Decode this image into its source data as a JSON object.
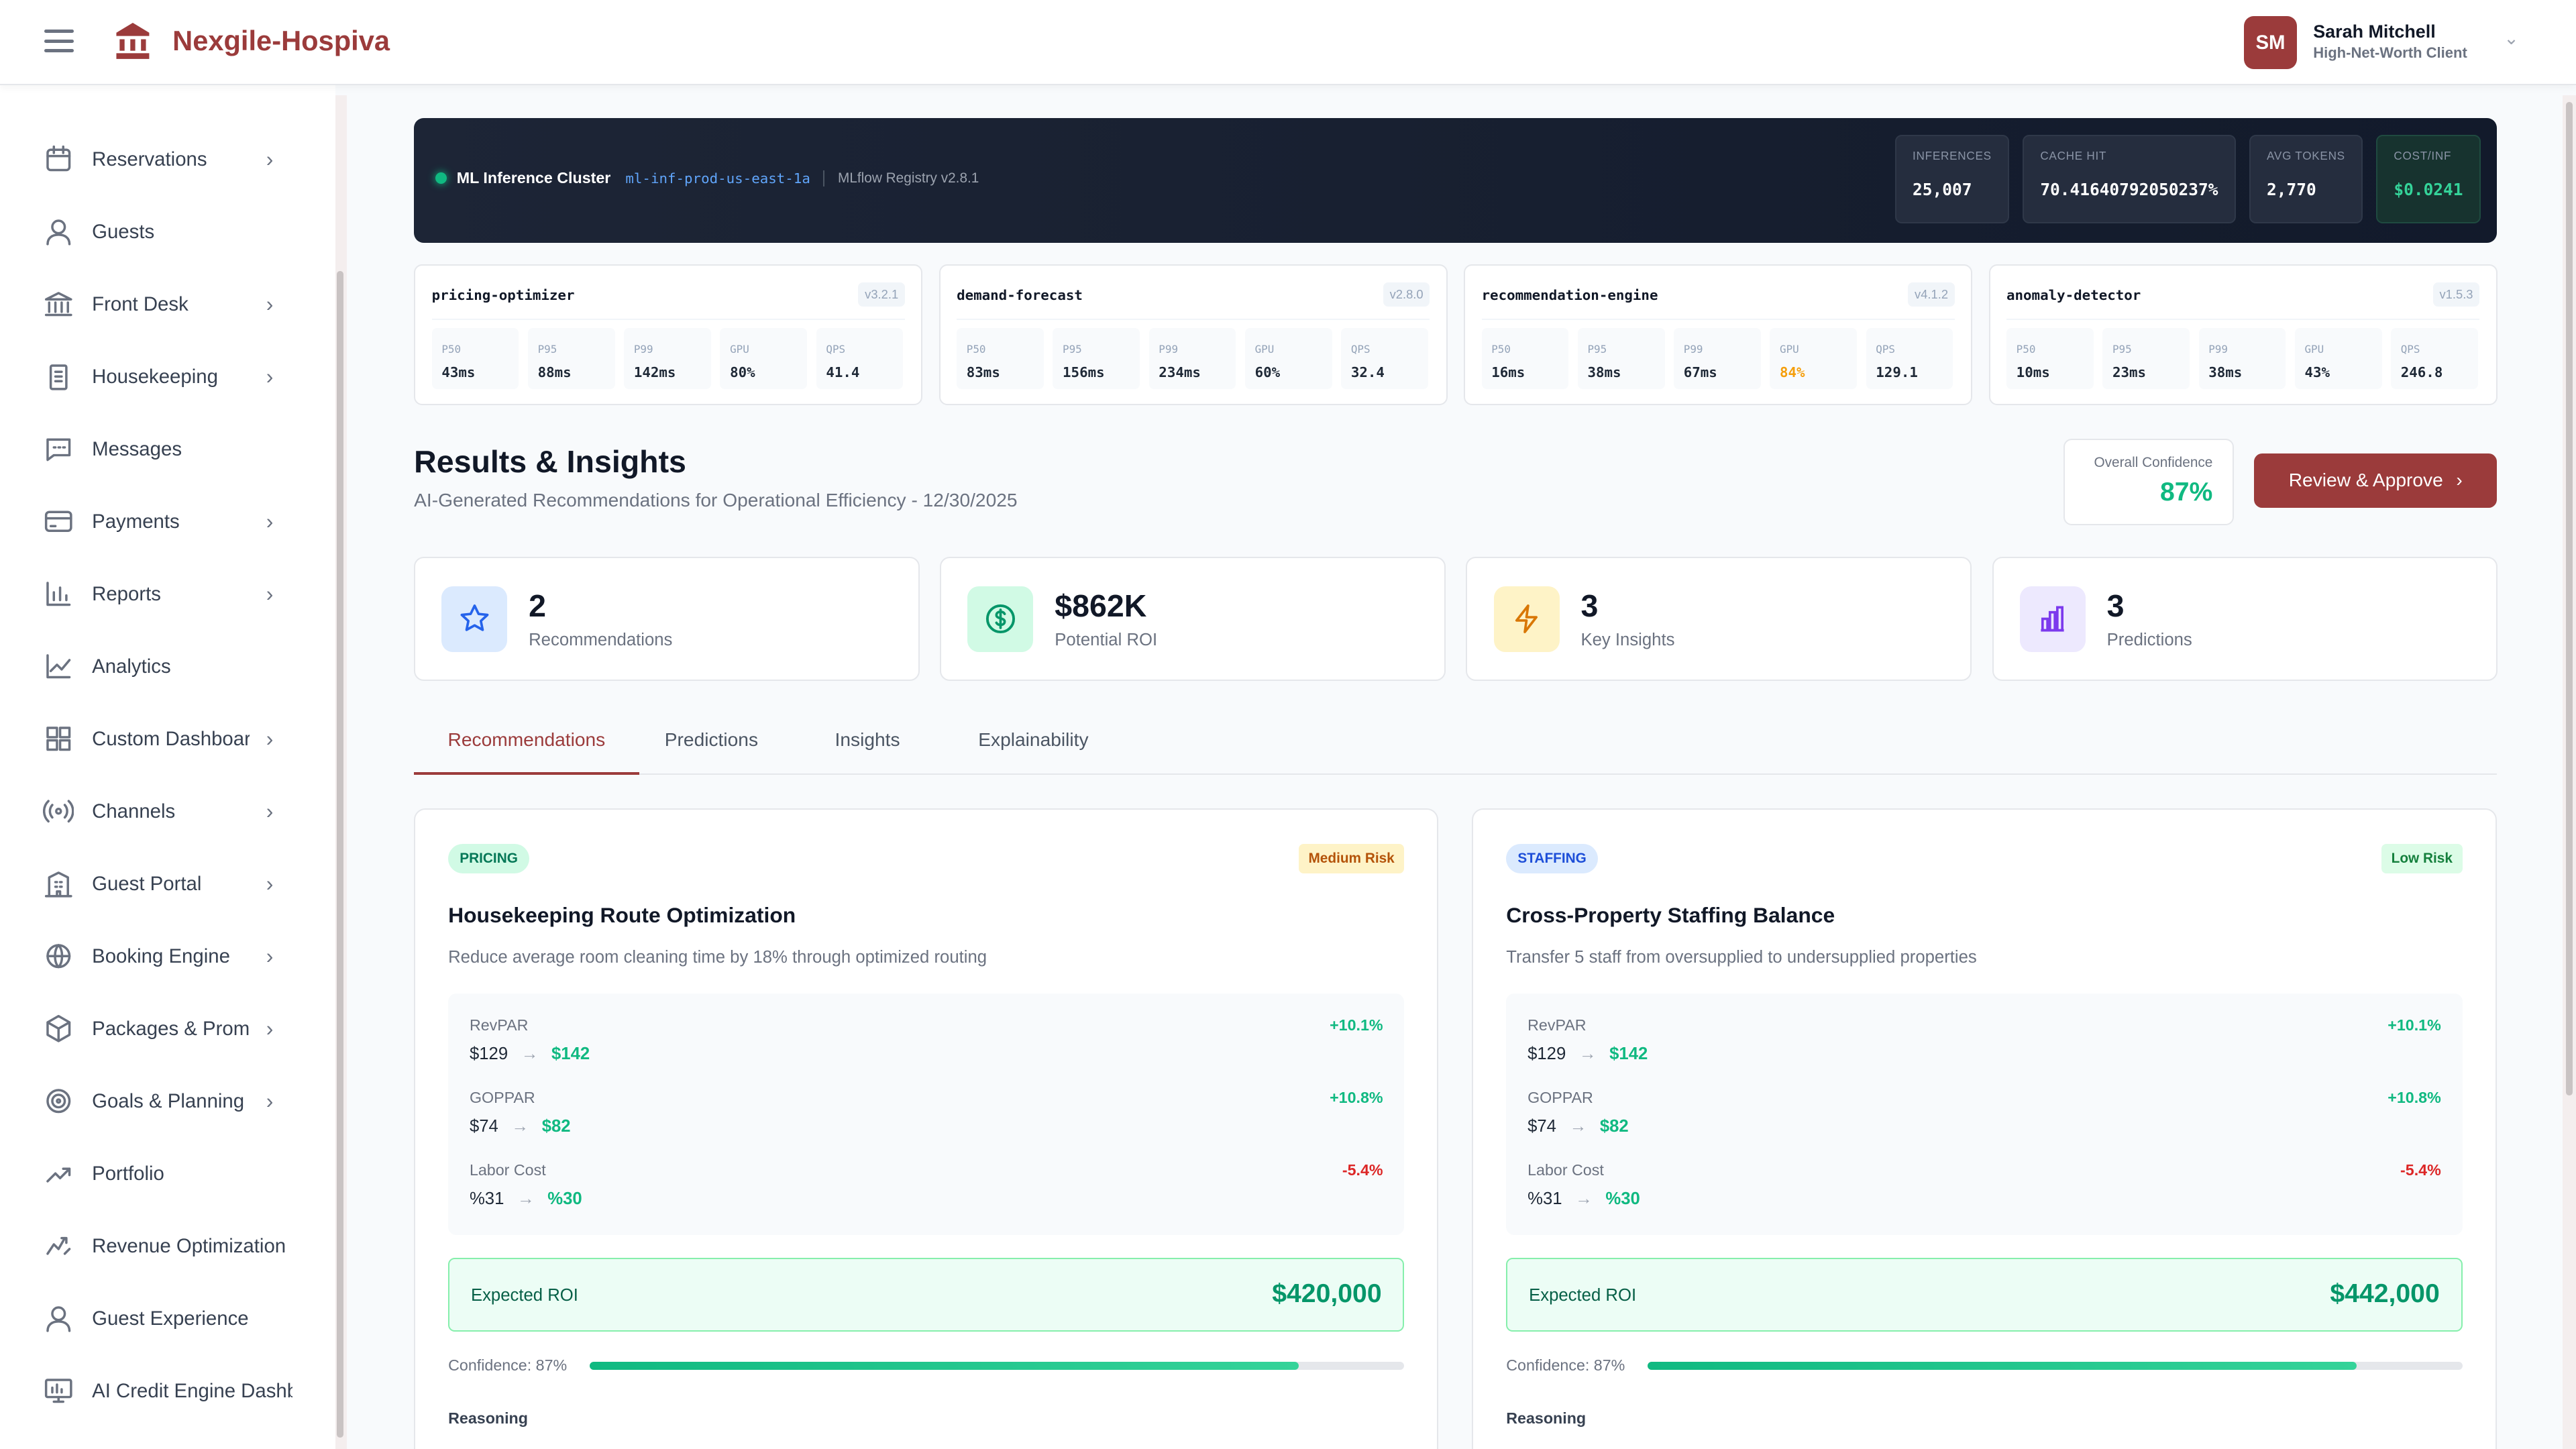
{
  "header": {
    "brand": "Nexgile-Hospiva",
    "user": {
      "initials": "SM",
      "name": "Sarah Mitchell",
      "role": "High-Net-Worth Client"
    }
  },
  "sidebar": {
    "items": [
      {
        "label": "Reservations",
        "icon": "calendar-icon",
        "chevron": true
      },
      {
        "label": "Guests",
        "icon": "user-icon",
        "chevron": false
      },
      {
        "label": "Front Desk",
        "icon": "bank-icon",
        "chevron": true
      },
      {
        "label": "Housekeeping",
        "icon": "clipboard-icon",
        "chevron": true
      },
      {
        "label": "Messages",
        "icon": "message-icon",
        "chevron": false
      },
      {
        "label": "Payments",
        "icon": "credit-card-icon",
        "chevron": true
      },
      {
        "label": "Reports",
        "icon": "bar-chart-icon",
        "chevron": true
      },
      {
        "label": "Analytics",
        "icon": "line-chart-icon",
        "chevron": false
      },
      {
        "label": "Custom Dashboard",
        "icon": "grid-icon",
        "chevron": true
      },
      {
        "label": "Channels",
        "icon": "broadcast-icon",
        "chevron": true
      },
      {
        "label": "Guest Portal",
        "icon": "building-icon",
        "chevron": true
      },
      {
        "label": "Booking Engine",
        "icon": "globe-icon",
        "chevron": true
      },
      {
        "label": "Packages & Promotions",
        "icon": "package-icon",
        "chevron": true
      },
      {
        "label": "Goals & Planning",
        "icon": "target-icon",
        "chevron": true
      },
      {
        "label": "Portfolio",
        "icon": "trending-up-icon",
        "chevron": false
      },
      {
        "label": "Revenue Optimization",
        "icon": "trending-icon",
        "chevron": false
      },
      {
        "label": "Guest Experience",
        "icon": "user-icon",
        "chevron": false
      },
      {
        "label": "AI Credit Engine Dashboard",
        "icon": "monitor-icon",
        "chevron": false
      }
    ]
  },
  "cluster": {
    "title": "ML Inference Cluster",
    "id": "ml-inf-prod-us-east-1a",
    "registry": "MLflow Registry v2.8.1",
    "stats": [
      {
        "label": "INFERENCES",
        "value": "25,007"
      },
      {
        "label": "CACHE HIT",
        "value": "70.41640792050237%"
      },
      {
        "label": "AVG TOKENS",
        "value": "2,770"
      },
      {
        "label": "COST/INF",
        "value": "$0.0241"
      }
    ]
  },
  "models": [
    {
      "name": "pricing-optimizer",
      "version": "v3.2.1",
      "metrics": [
        {
          "label": "P50",
          "value": "43ms"
        },
        {
          "label": "P95",
          "value": "88ms"
        },
        {
          "label": "P99",
          "value": "142ms"
        },
        {
          "label": "GPU",
          "value": "80%"
        },
        {
          "label": "QPS",
          "value": "41.4"
        }
      ]
    },
    {
      "name": "demand-forecast",
      "version": "v2.8.0",
      "metrics": [
        {
          "label": "P50",
          "value": "83ms"
        },
        {
          "label": "P95",
          "value": "156ms"
        },
        {
          "label": "P99",
          "value": "234ms"
        },
        {
          "label": "GPU",
          "value": "60%"
        },
        {
          "label": "QPS",
          "value": "32.4"
        }
      ]
    },
    {
      "name": "recommendation-engine",
      "version": "v4.1.2",
      "metrics": [
        {
          "label": "P50",
          "value": "16ms"
        },
        {
          "label": "P95",
          "value": "38ms"
        },
        {
          "label": "P99",
          "value": "67ms"
        },
        {
          "label": "GPU",
          "value": "84%",
          "warn": true
        },
        {
          "label": "QPS",
          "value": "129.1"
        }
      ]
    },
    {
      "name": "anomaly-detector",
      "version": "v1.5.3",
      "metrics": [
        {
          "label": "P50",
          "value": "10ms"
        },
        {
          "label": "P95",
          "value": "23ms"
        },
        {
          "label": "P99",
          "value": "38ms"
        },
        {
          "label": "GPU",
          "value": "43%"
        },
        {
          "label": "QPS",
          "value": "246.8"
        }
      ]
    }
  ],
  "results": {
    "title": "Results & Insights",
    "subtitle": "AI-Generated Recommendations for Operational Efficiency - 12/30/2025",
    "confidence_label": "Overall Confidence",
    "confidence": "87%",
    "approve_label": "Review & Approve"
  },
  "summary": [
    {
      "value": "2",
      "label": "Recommendations",
      "icon": "star-icon",
      "color": "#2563eb",
      "bg": "#dbeafe"
    },
    {
      "value": "$862K",
      "label": "Potential ROI",
      "icon": "dollar-icon",
      "color": "#059669",
      "bg": "#d1fae5"
    },
    {
      "value": "3",
      "label": "Key Insights",
      "icon": "lightning-icon",
      "color": "#d97706",
      "bg": "#fef3c7"
    },
    {
      "value": "3",
      "label": "Predictions",
      "icon": "bar-chart-icon",
      "color": "#7c3aed",
      "bg": "#ede9fe"
    }
  ],
  "tabs": [
    {
      "label": "Recommendations",
      "active": true
    },
    {
      "label": "Predictions"
    },
    {
      "label": "Insights"
    },
    {
      "label": "Explainability"
    }
  ],
  "recommendations": [
    {
      "category": "PRICING",
      "risk": "Medium Risk",
      "title": "Housekeeping Route Optimization",
      "description": "Reduce average room cleaning time by 18% through optimized routing",
      "metrics": [
        {
          "label": "RevPAR",
          "from": "$129",
          "to": "$142",
          "change": "+10.1%",
          "positive": true
        },
        {
          "label": "GOPPAR",
          "from": "$74",
          "to": "$82",
          "change": "+10.8%",
          "positive": true
        },
        {
          "label": "Labor Cost",
          "from": "%31",
          "to": "%30",
          "change": "-5.4%",
          "positive": false
        }
      ],
      "roi_label": "Expected ROI",
      "roi": "$420,000",
      "confidence_text": "Confidence: 87%",
      "confidence": 87,
      "reasoning_label": "Reasoning"
    },
    {
      "category": "STAFFING",
      "risk": "Low Risk",
      "title": "Cross-Property Staffing Balance",
      "description": "Transfer 5 staff from oversupplied to undersupplied properties",
      "metrics": [
        {
          "label": "RevPAR",
          "from": "$129",
          "to": "$142",
          "change": "+10.1%",
          "positive": true
        },
        {
          "label": "GOPPAR",
          "from": "$74",
          "to": "$82",
          "change": "+10.8%",
          "positive": true
        },
        {
          "label": "Labor Cost",
          "from": "%31",
          "to": "%30",
          "change": "-5.4%",
          "positive": false
        }
      ],
      "roi_label": "Expected ROI",
      "roi": "$442,000",
      "confidence_text": "Confidence: 87%",
      "confidence": 87,
      "reasoning_label": "Reasoning"
    }
  ],
  "colors": {
    "brand": "#9b3b3b",
    "positive": "#10b981",
    "negative": "#dc2626",
    "warning": "#f59e0b"
  }
}
